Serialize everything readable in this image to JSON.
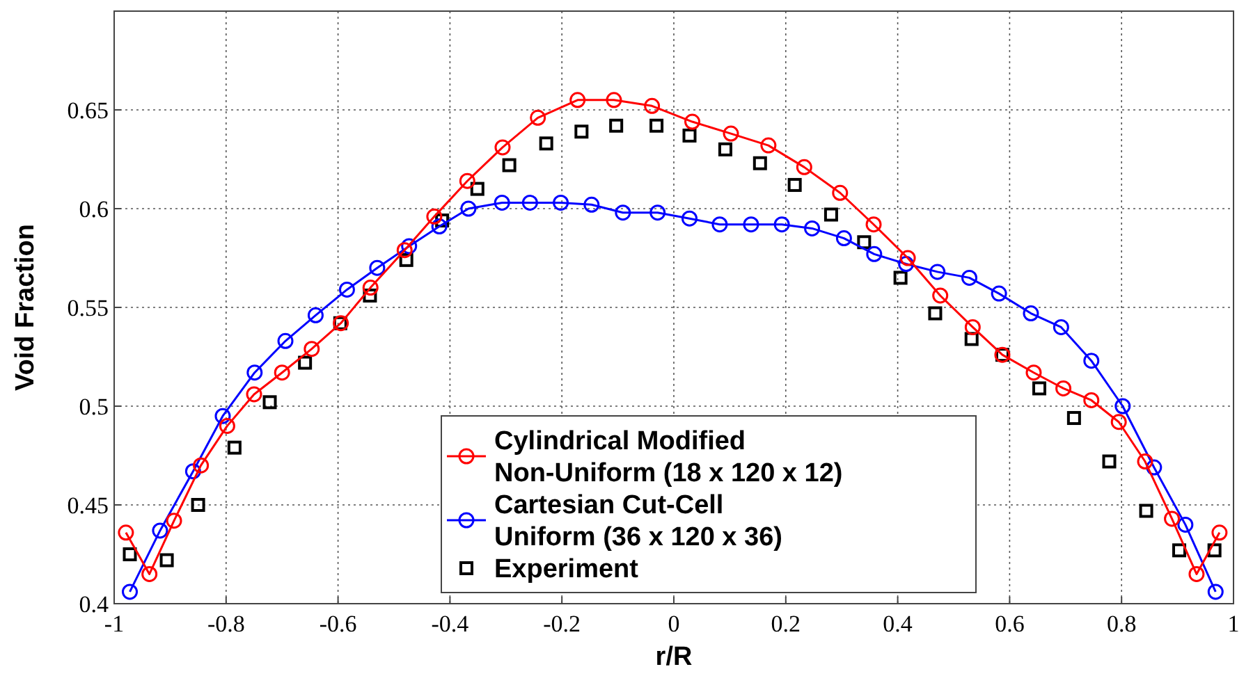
{
  "chart_data": {
    "type": "line",
    "xlabel": "r/R",
    "ylabel": "Void Fraction",
    "xlim": [
      -1,
      1
    ],
    "ylim": [
      0.4,
      0.7
    ],
    "xticks": [
      -1,
      -0.8,
      -0.6,
      -0.4,
      -0.2,
      0,
      0.2,
      0.4,
      0.6,
      0.8,
      1
    ],
    "yticks": [
      0.4,
      0.45,
      0.5,
      0.55,
      0.6,
      0.65
    ],
    "grid": true,
    "legend": "bottom",
    "series": [
      {
        "name": "Cylindrical Modified\nNon-Uniform (18 x 120 x 12)",
        "color": "#ff0000",
        "marker": "circle",
        "x": [
          -0.979,
          -0.937,
          -0.893,
          -0.845,
          -0.798,
          -0.75,
          -0.7,
          -0.647,
          -0.595,
          -0.542,
          -0.481,
          -0.428,
          -0.369,
          -0.306,
          -0.243,
          -0.172,
          -0.107,
          -0.039,
          0.033,
          0.102,
          0.169,
          0.233,
          0.297,
          0.357,
          0.418,
          0.476,
          0.534,
          0.587,
          0.643,
          0.696,
          0.746,
          0.795,
          0.842,
          0.89,
          0.934,
          0.975
        ],
        "values": [
          0.436,
          0.415,
          0.442,
          0.47,
          0.49,
          0.506,
          0.517,
          0.529,
          0.542,
          0.56,
          0.579,
          0.596,
          0.614,
          0.631,
          0.646,
          0.655,
          0.655,
          0.652,
          0.644,
          0.638,
          0.632,
          0.621,
          0.608,
          0.592,
          0.575,
          0.556,
          0.54,
          0.526,
          0.517,
          0.509,
          0.503,
          0.492,
          0.472,
          0.443,
          0.415,
          0.436
        ]
      },
      {
        "name": "Cartesian Cut-Cell\nUniform (36 x 120 x 36)",
        "color": "#0000ff",
        "marker": "circle",
        "x": [
          -0.972,
          -0.918,
          -0.859,
          -0.806,
          -0.749,
          -0.694,
          -0.64,
          -0.584,
          -0.53,
          -0.473,
          -0.419,
          -0.367,
          -0.307,
          -0.257,
          -0.202,
          -0.147,
          -0.091,
          -0.029,
          0.028,
          0.082,
          0.138,
          0.193,
          0.247,
          0.304,
          0.358,
          0.415,
          0.471,
          0.528,
          0.581,
          0.638,
          0.692,
          0.746,
          0.802,
          0.858,
          0.914,
          0.968
        ],
        "values": [
          0.406,
          0.437,
          0.467,
          0.495,
          0.517,
          0.533,
          0.546,
          0.559,
          0.57,
          0.581,
          0.591,
          0.6,
          0.603,
          0.603,
          0.603,
          0.602,
          0.598,
          0.598,
          0.595,
          0.592,
          0.592,
          0.592,
          0.59,
          0.585,
          0.577,
          0.572,
          0.568,
          0.565,
          0.557,
          0.547,
          0.54,
          0.523,
          0.5,
          0.469,
          0.44,
          0.406
        ]
      },
      {
        "name": "Experiment",
        "type": "scatter",
        "color": "#000000",
        "marker": "square",
        "x": [
          -0.972,
          -0.906,
          -0.85,
          -0.785,
          -0.722,
          -0.659,
          -0.596,
          -0.543,
          -0.478,
          -0.414,
          -0.351,
          -0.294,
          -0.228,
          -0.165,
          -0.103,
          -0.031,
          0.028,
          0.092,
          0.154,
          0.216,
          0.281,
          0.34,
          0.405,
          0.467,
          0.532,
          0.587,
          0.653,
          0.715,
          0.778,
          0.844,
          0.903,
          0.966
        ],
        "values": [
          0.425,
          0.422,
          0.45,
          0.479,
          0.502,
          0.522,
          0.542,
          0.556,
          0.574,
          0.594,
          0.61,
          0.622,
          0.633,
          0.639,
          0.642,
          0.642,
          0.637,
          0.63,
          0.623,
          0.612,
          0.597,
          0.583,
          0.565,
          0.547,
          0.534,
          0.526,
          0.509,
          0.494,
          0.472,
          0.447,
          0.427,
          0.427
        ]
      }
    ]
  }
}
